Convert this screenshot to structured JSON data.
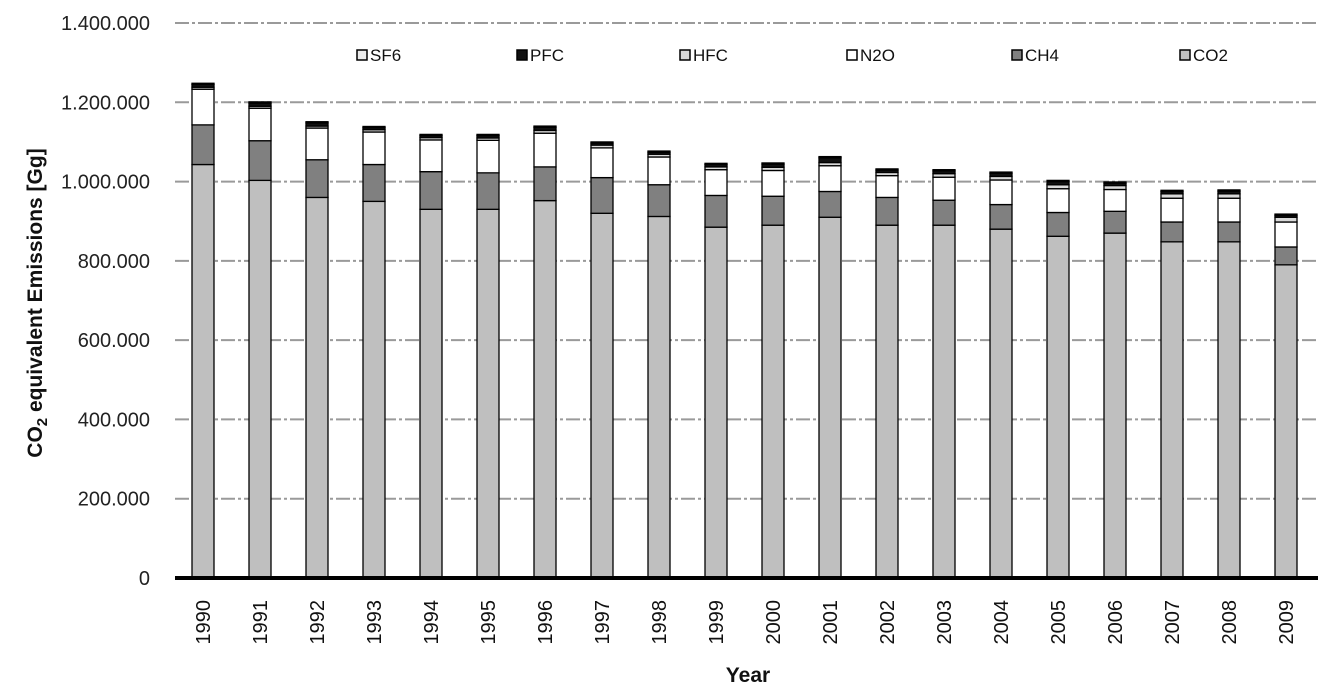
{
  "chart_data": {
    "type": "bar",
    "stacked": true,
    "xlabel": "Year",
    "ylabel": {
      "prefix": "CO",
      "subscript": "2",
      "suffix": " equivalent Emissions [Gg]"
    },
    "ylim": [
      0,
      1400000
    ],
    "yticks": [
      0,
      200000,
      400000,
      600000,
      800000,
      1000000,
      1200000,
      1400000
    ],
    "ytick_labels": [
      "0",
      "200.000",
      "400.000",
      "600.000",
      "800.000",
      "1.000.000",
      "1.200.000",
      "1.400.000"
    ],
    "grid": "horizontal dashed",
    "legend_position": "top",
    "categories": [
      "1990",
      "1991",
      "1992",
      "1993",
      "1994",
      "1995",
      "1996",
      "1997",
      "1998",
      "1999",
      "2000",
      "2001",
      "2002",
      "2003",
      "2004",
      "2005",
      "2006",
      "2007",
      "2008",
      "2009"
    ],
    "legend_order": [
      "SF6",
      "PFC",
      "HFC",
      "N2O",
      "CH4",
      "CO2"
    ],
    "series": [
      {
        "name": "CO2",
        "color": "#bfbfbf",
        "values": [
          1043000,
          1003000,
          960000,
          950000,
          930000,
          930000,
          952000,
          920000,
          912000,
          885000,
          890000,
          910000,
          890000,
          890000,
          880000,
          862000,
          870000,
          848000,
          848000,
          790000
        ]
      },
      {
        "name": "CH4",
        "color": "#808080",
        "values": [
          100000,
          100000,
          95000,
          93000,
          95000,
          92000,
          85000,
          90000,
          80000,
          80000,
          73000,
          65000,
          70000,
          63000,
          62000,
          60000,
          55000,
          50000,
          50000,
          45000
        ]
      },
      {
        "name": "N2O",
        "color": "#ffffff",
        "values": [
          90000,
          82000,
          80000,
          82000,
          80000,
          82000,
          85000,
          75000,
          70000,
          65000,
          65000,
          65000,
          55000,
          58000,
          62000,
          60000,
          55000,
          60000,
          60000,
          63000
        ]
      },
      {
        "name": "HFC",
        "color": "#d9d9d9",
        "values": [
          5000,
          5000,
          5000,
          6000,
          6000,
          6000,
          7000,
          7000,
          7000,
          7000,
          8000,
          8000,
          8000,
          9000,
          9000,
          10000,
          10000,
          11000,
          11000,
          12000
        ]
      },
      {
        "name": "PFC",
        "color": "#111111",
        "values": [
          7000,
          8000,
          8000,
          5000,
          5000,
          6000,
          8000,
          5000,
          5000,
          6000,
          8000,
          12000,
          6000,
          7000,
          8000,
          8000,
          6000,
          6000,
          7000,
          5000
        ]
      },
      {
        "name": "SF6",
        "color": "#ececec",
        "values": [
          3000,
          3000,
          3000,
          3000,
          3000,
          3000,
          3000,
          3000,
          3000,
          3000,
          3000,
          3000,
          3000,
          3000,
          3000,
          3000,
          3000,
          3000,
          3000,
          3000
        ]
      }
    ]
  }
}
